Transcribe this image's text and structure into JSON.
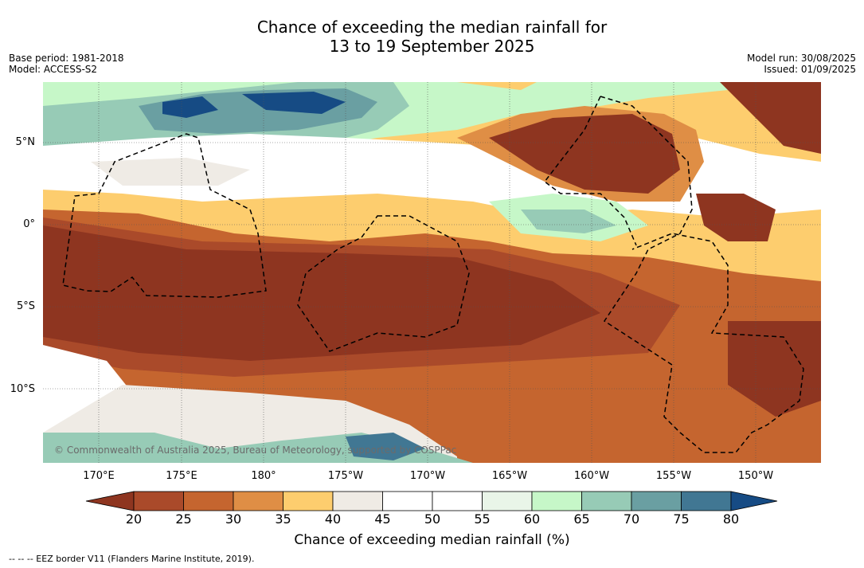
{
  "header": {
    "title_line1": "Chance of exceeding the median rainfall for",
    "title_line2": "13 to 19 September 2025",
    "base_period": "Base period: 1981-2018",
    "model": "Model: ACCESS-S2",
    "model_run": "Model run: 30/08/2025",
    "issued": "Issued: 01/09/2025"
  },
  "map": {
    "lat_labels": [
      "5°N",
      "0°",
      "5°S",
      "10°S"
    ],
    "lon_labels": [
      "170°E",
      "175°E",
      "180°",
      "175°W",
      "170°W",
      "165°W",
      "160°W",
      "155°W",
      "150°W"
    ],
    "copyright": "© Commonwealth of Australia 2025, Bureau of Meteorology, supported by COSPPac"
  },
  "legend": {
    "ticks": [
      "20",
      "25",
      "30",
      "35",
      "40",
      "45",
      "50",
      "55",
      "60",
      "65",
      "70",
      "75",
      "80"
    ],
    "title": "Chance of exceeding median rainfall (%)",
    "colors": [
      "#8e3520",
      "#aa4a2a",
      "#c5652f",
      "#df8e45",
      "#fdcd6e",
      "#efebe5",
      "#ffffff",
      "#ffffff",
      "#e9f5e8",
      "#c6f7c8",
      "#97cbb6",
      "#6a9fa2",
      "#417793",
      "#164b84"
    ],
    "eez_note": "--  --  -- EEZ border V11 (Flanders Marine Institute, 2019)."
  }
}
